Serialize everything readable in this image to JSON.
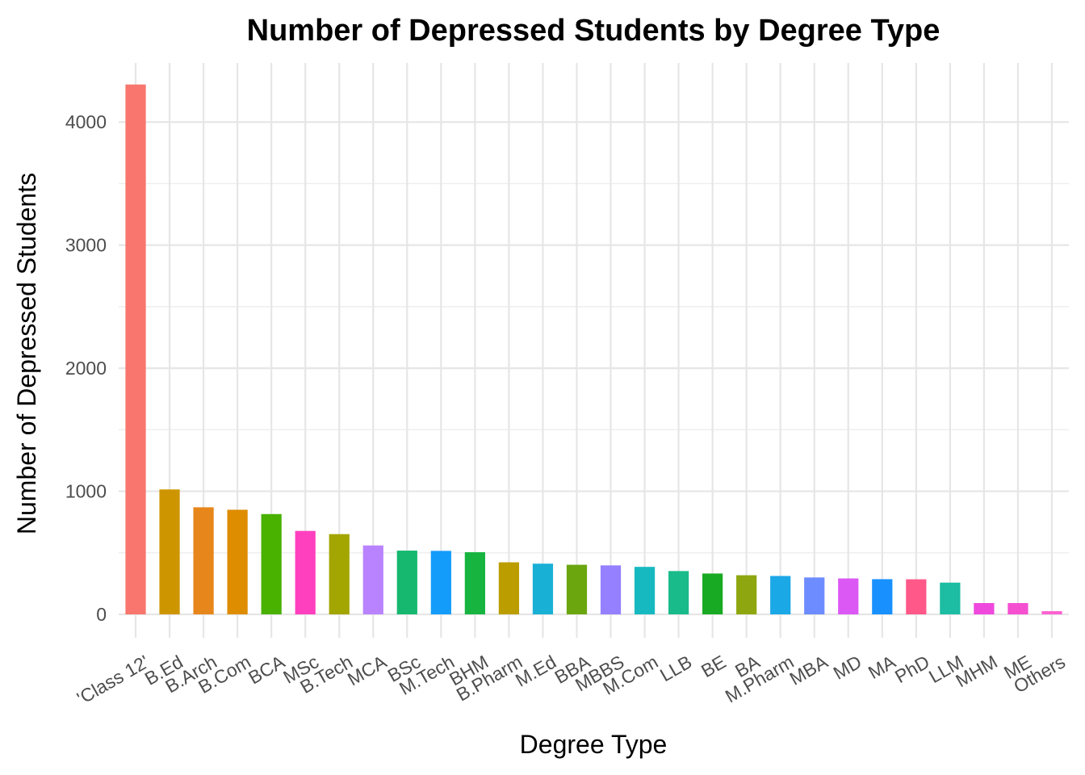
{
  "chart_data": {
    "type": "bar",
    "title": "Number of Depressed Students by Degree Type",
    "xlabel": "Degree Type",
    "ylabel": "Number of Depressed Students",
    "ylim": [
      -190,
      4480
    ],
    "yticks": [
      0,
      1000,
      2000,
      3000,
      4000
    ],
    "grid": true,
    "legend": "none",
    "categories": [
      "'Class 12'",
      "B.Ed",
      "B.Arch",
      "B.Com",
      "BCA",
      "MSc",
      "B.Tech",
      "MCA",
      "BSc",
      "M.Tech",
      "BHM",
      "B.Pharm",
      "M.Ed",
      "BBA",
      "MBBS",
      "M.Com",
      "LLB",
      "BE",
      "BA",
      "M.Pharm",
      "MBA",
      "MD",
      "MA",
      "PhD",
      "LLM",
      "MHM",
      "ME",
      "Others"
    ],
    "values": [
      4305,
      1015,
      870,
      850,
      815,
      678,
      652,
      560,
      518,
      516,
      505,
      423,
      412,
      403,
      398,
      386,
      352,
      332,
      318,
      312,
      300,
      292,
      286,
      285,
      258,
      92,
      92,
      26
    ],
    "colors": [
      "#F8766D",
      "#CD9600",
      "#E7861B",
      "#DE8C00",
      "#49B100",
      "#FF40BE",
      "#A3A500",
      "#B983FF",
      "#16B870",
      "#149CFA",
      "#17B440",
      "#BB9D00",
      "#19B0D6",
      "#6BA60F",
      "#9580FF",
      "#17B9C1",
      "#1ABB8B",
      "#19AA23",
      "#8EA60F",
      "#1BA8E6",
      "#6D8CFF",
      "#DC58F5",
      "#1891FF",
      "#FF5889",
      "#1CBDA2",
      "#EF48DD",
      "#F450D0",
      "#FD61D1"
    ]
  }
}
